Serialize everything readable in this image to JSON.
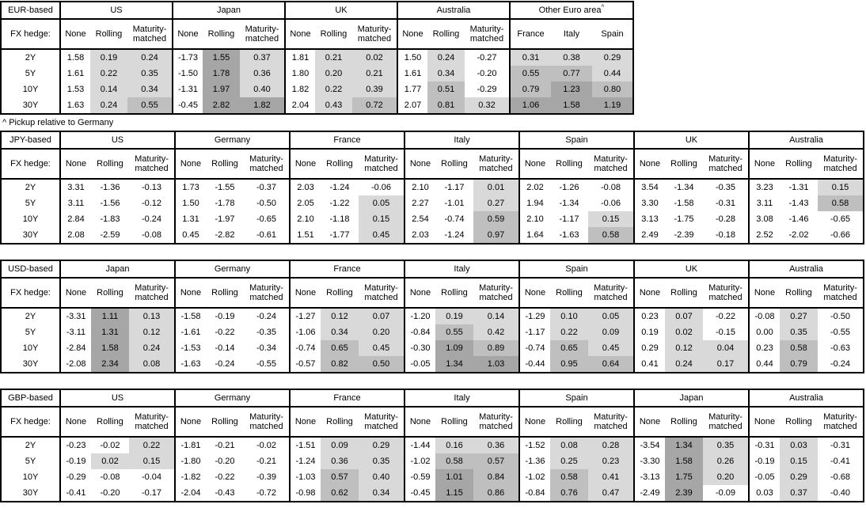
{
  "colors": {
    "cell_background": "#ffffff",
    "shade_light": "#d9d9d9",
    "shade_medium": "#bfbfbf",
    "shade_dark": "#a6a6a6",
    "border": "#000000",
    "text": "#000000"
  },
  "shading_rule": {
    "applies_to": "hedged and relative-pickup columns only",
    "thresholds": [
      0,
      0.5,
      1
    ]
  },
  "legend": {
    "fx_hedge_label": "FX hedge:",
    "hedge_types": [
      "None",
      "Rolling",
      "Maturity-matched"
    ]
  },
  "tenors": [
    "2Y",
    "5Y",
    "10Y",
    "30Y"
  ],
  "footnote": "^ Pickup relative to Germany",
  "tables": [
    {
      "base_label": "EUR-based",
      "groups": [
        {
          "name": "US",
          "rows": [
            [
              1.58,
              0.19,
              0.24
            ],
            [
              1.61,
              0.22,
              0.35
            ],
            [
              1.53,
              0.14,
              0.34
            ],
            [
              1.63,
              0.24,
              0.55
            ]
          ]
        },
        {
          "name": "Japan",
          "rows": [
            [
              -1.73,
              1.55,
              0.37
            ],
            [
              -1.5,
              1.78,
              0.36
            ],
            [
              -1.31,
              1.97,
              0.4
            ],
            [
              -0.45,
              2.82,
              1.82
            ]
          ]
        },
        {
          "name": "UK",
          "rows": [
            [
              1.81,
              0.21,
              0.02
            ],
            [
              1.8,
              0.2,
              0.21
            ],
            [
              1.82,
              0.22,
              0.39
            ],
            [
              2.04,
              0.43,
              0.72
            ]
          ]
        },
        {
          "name": "Australia",
          "rows": [
            [
              1.5,
              0.24,
              -0.27
            ],
            [
              1.61,
              0.34,
              -0.2
            ],
            [
              1.77,
              0.51,
              -0.29
            ],
            [
              2.07,
              0.81,
              0.32
            ]
          ]
        },
        {
          "name": "Other Euro area",
          "marker": "^",
          "columns": [
            "France",
            "Italy",
            "Spain"
          ],
          "rows": [
            [
              0.31,
              0.38,
              0.29
            ],
            [
              0.55,
              0.77,
              0.44
            ],
            [
              0.79,
              1.23,
              0.8
            ],
            [
              1.06,
              1.58,
              1.19
            ]
          ]
        }
      ]
    },
    {
      "base_label": "JPY-based",
      "groups": [
        {
          "name": "US",
          "rows": [
            [
              3.31,
              -1.36,
              -0.13
            ],
            [
              3.11,
              -1.56,
              -0.12
            ],
            [
              2.84,
              -1.83,
              -0.24
            ],
            [
              2.08,
              -2.59,
              -0.08
            ]
          ]
        },
        {
          "name": "Germany",
          "rows": [
            [
              1.73,
              -1.55,
              -0.37
            ],
            [
              1.5,
              -1.78,
              -0.5
            ],
            [
              1.31,
              -1.97,
              -0.65
            ],
            [
              0.45,
              -2.82,
              -0.61
            ]
          ]
        },
        {
          "name": "France",
          "rows": [
            [
              2.03,
              -1.24,
              -0.06
            ],
            [
              2.05,
              -1.22,
              0.05
            ],
            [
              2.1,
              -1.18,
              0.15
            ],
            [
              1.51,
              -1.77,
              0.45
            ]
          ]
        },
        {
          "name": "Italy",
          "rows": [
            [
              2.1,
              -1.17,
              0.01
            ],
            [
              2.27,
              -1.01,
              0.27
            ],
            [
              2.54,
              -0.74,
              0.59
            ],
            [
              2.03,
              -1.24,
              0.97
            ]
          ]
        },
        {
          "name": "Spain",
          "rows": [
            [
              2.02,
              -1.26,
              -0.08
            ],
            [
              1.94,
              -1.34,
              -0.06
            ],
            [
              2.1,
              -1.17,
              0.15
            ],
            [
              1.64,
              -1.63,
              0.58
            ]
          ]
        },
        {
          "name": "UK",
          "rows": [
            [
              3.54,
              -1.34,
              -0.35
            ],
            [
              3.3,
              -1.58,
              -0.31
            ],
            [
              3.13,
              -1.75,
              -0.28
            ],
            [
              2.49,
              -2.39,
              -0.18
            ]
          ]
        },
        {
          "name": "Australia",
          "rows": [
            [
              3.23,
              -1.31,
              0.15
            ],
            [
              3.11,
              -1.43,
              0.58
            ],
            [
              3.08,
              -1.46,
              -0.65
            ],
            [
              2.52,
              -2.02,
              -0.66
            ]
          ]
        }
      ]
    },
    {
      "base_label": "USD-based",
      "groups": [
        {
          "name": "Japan",
          "rows": [
            [
              -3.31,
              1.11,
              0.13
            ],
            [
              -3.11,
              1.31,
              0.12
            ],
            [
              -2.84,
              1.58,
              0.24
            ],
            [
              -2.08,
              2.34,
              0.08
            ]
          ]
        },
        {
          "name": "Germany",
          "rows": [
            [
              -1.58,
              -0.19,
              -0.24
            ],
            [
              -1.61,
              -0.22,
              -0.35
            ],
            [
              -1.53,
              -0.14,
              -0.34
            ],
            [
              -1.63,
              -0.24,
              -0.55
            ]
          ]
        },
        {
          "name": "France",
          "rows": [
            [
              -1.27,
              0.12,
              0.07
            ],
            [
              -1.06,
              0.34,
              0.2
            ],
            [
              -0.74,
              0.65,
              0.45
            ],
            [
              -0.57,
              0.82,
              0.5
            ]
          ]
        },
        {
          "name": "Italy",
          "rows": [
            [
              -1.2,
              0.19,
              0.14
            ],
            [
              -0.84,
              0.55,
              0.42
            ],
            [
              -0.3,
              1.09,
              0.89
            ],
            [
              -0.05,
              1.34,
              1.03
            ]
          ]
        },
        {
          "name": "Spain",
          "rows": [
            [
              -1.29,
              0.1,
              0.05
            ],
            [
              -1.17,
              0.22,
              0.09
            ],
            [
              -0.74,
              0.65,
              0.45
            ],
            [
              -0.44,
              0.95,
              0.64
            ]
          ]
        },
        {
          "name": "UK",
          "rows": [
            [
              0.23,
              0.07,
              -0.22
            ],
            [
              0.19,
              0.02,
              -0.15
            ],
            [
              0.29,
              0.12,
              0.04
            ],
            [
              0.41,
              0.24,
              0.17
            ]
          ]
        },
        {
          "name": "Australia",
          "rows": [
            [
              -0.08,
              0.27,
              -0.5
            ],
            [
              0.0,
              0.35,
              -0.55
            ],
            [
              0.23,
              0.58,
              -0.63
            ],
            [
              0.44,
              0.79,
              -0.24
            ]
          ]
        }
      ]
    },
    {
      "base_label": "GBP-based",
      "groups": [
        {
          "name": "US",
          "rows": [
            [
              -0.23,
              -0.02,
              0.22
            ],
            [
              -0.19,
              0.02,
              0.15
            ],
            [
              -0.29,
              -0.08,
              -0.04
            ],
            [
              -0.41,
              -0.2,
              -0.17
            ]
          ]
        },
        {
          "name": "Germany",
          "rows": [
            [
              -1.81,
              -0.21,
              -0.02
            ],
            [
              -1.8,
              -0.2,
              -0.21
            ],
            [
              -1.82,
              -0.22,
              -0.39
            ],
            [
              -2.04,
              -0.43,
              -0.72
            ]
          ]
        },
        {
          "name": "France",
          "rows": [
            [
              -1.51,
              0.09,
              0.29
            ],
            [
              -1.24,
              0.36,
              0.35
            ],
            [
              -1.03,
              0.57,
              0.4
            ],
            [
              -0.98,
              0.62,
              0.34
            ]
          ]
        },
        {
          "name": "Italy",
          "rows": [
            [
              -1.44,
              0.16,
              0.36
            ],
            [
              -1.02,
              0.58,
              0.57
            ],
            [
              -0.59,
              1.01,
              0.84
            ],
            [
              -0.45,
              1.15,
              0.86
            ]
          ]
        },
        {
          "name": "Spain",
          "rows": [
            [
              -1.52,
              0.08,
              0.28
            ],
            [
              -1.36,
              0.25,
              0.23
            ],
            [
              -1.02,
              0.58,
              0.41
            ],
            [
              -0.84,
              0.76,
              0.47
            ]
          ]
        },
        {
          "name": "Japan",
          "rows": [
            [
              -3.54,
              1.34,
              0.35
            ],
            [
              -3.3,
              1.58,
              0.26
            ],
            [
              -3.13,
              1.75,
              0.2
            ],
            [
              -2.49,
              2.39,
              -0.09
            ]
          ]
        },
        {
          "name": "Australia",
          "rows": [
            [
              -0.31,
              0.03,
              -0.31
            ],
            [
              -0.19,
              0.15,
              -0.41
            ],
            [
              -0.05,
              0.29,
              -0.68
            ],
            [
              0.03,
              0.37,
              -0.4
            ]
          ]
        }
      ]
    }
  ]
}
